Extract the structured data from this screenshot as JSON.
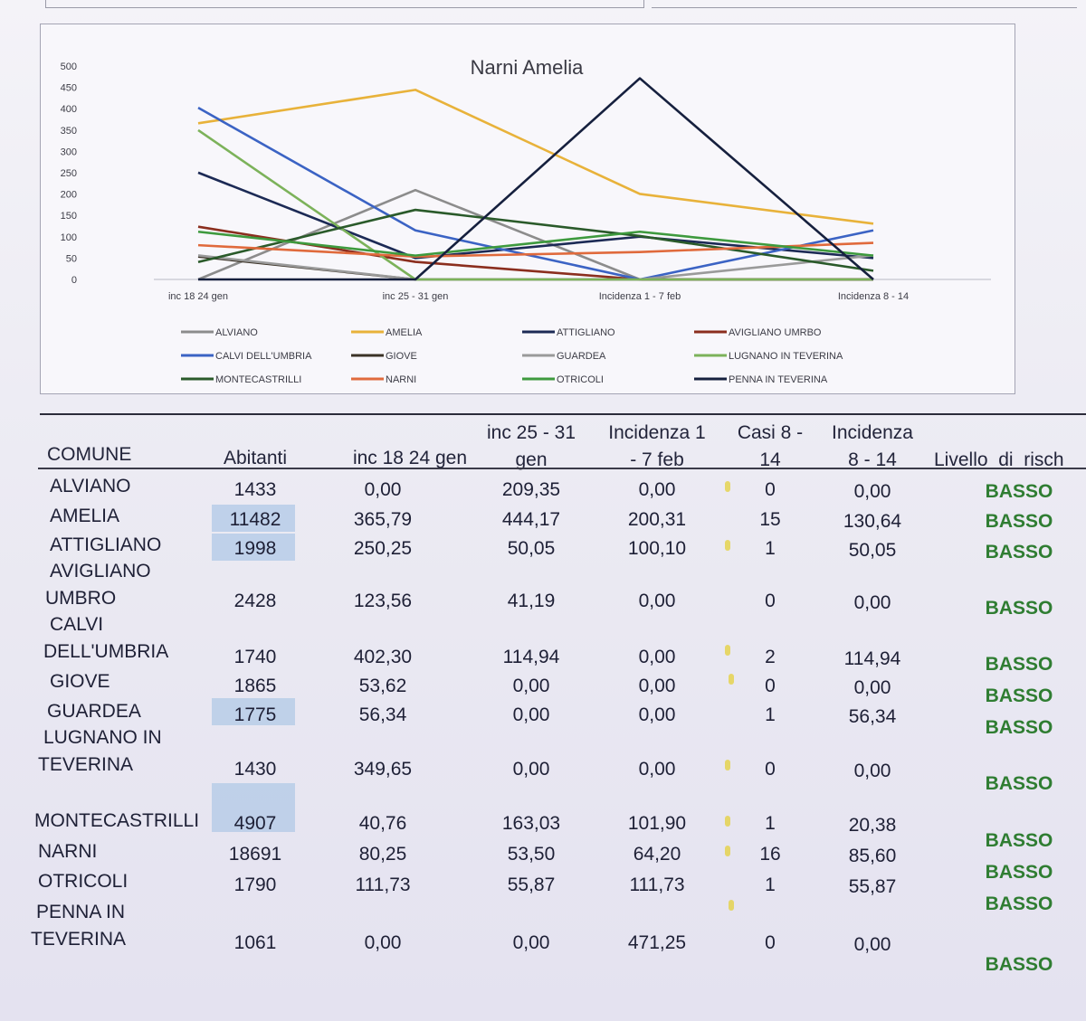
{
  "chart_data": {
    "type": "line",
    "title": "Narni Amelia",
    "categories": [
      "inc 18 24 gen",
      "inc 25 - 31 gen",
      "Incidenza 1 - 7 feb",
      "Incidenza 8 - 14"
    ],
    "ylim": [
      0,
      500
    ],
    "yticks": [
      "0",
      "50",
      "100",
      "150",
      "200",
      "250",
      "300",
      "350",
      "400",
      "450",
      "500"
    ],
    "grid": false,
    "legend_position": "bottom",
    "series": [
      {
        "name": "ALVIANO",
        "color": "#8c8c8c",
        "values": [
          0,
          209.35,
          0,
          0
        ]
      },
      {
        "name": "AMELIA",
        "color": "#e8b23a",
        "values": [
          365.79,
          444.17,
          200.31,
          130.64
        ]
      },
      {
        "name": "ATTIGLIANO",
        "color": "#1c2a55",
        "values": [
          250.25,
          50.05,
          100.1,
          50.05
        ]
      },
      {
        "name": "AVIGLIANO UMRBO",
        "color": "#8b2e1e",
        "values": [
          123.56,
          41.19,
          0,
          0
        ]
      },
      {
        "name": "CALVI DELL'UMBRIA",
        "color": "#3b63c4",
        "values": [
          402.3,
          114.94,
          0,
          114.94
        ]
      },
      {
        "name": "GIOVE",
        "color": "#3b3226",
        "values": [
          53.62,
          0,
          0,
          0
        ]
      },
      {
        "name": "GUARDEA",
        "color": "#9a9a9a",
        "values": [
          56.34,
          0,
          0,
          56.34
        ]
      },
      {
        "name": "LUGNANO IN TEVERINA",
        "color": "#7cb25a",
        "values": [
          349.65,
          0,
          0,
          0
        ]
      },
      {
        "name": "MONTECASTRILLI",
        "color": "#2a5a2a",
        "values": [
          40.76,
          163.03,
          101.9,
          20.38
        ]
      },
      {
        "name": "NARNI",
        "color": "#e06a3c",
        "values": [
          80.25,
          53.5,
          64.2,
          85.6
        ]
      },
      {
        "name": "OTRICOLI",
        "color": "#3e9a3e",
        "values": [
          111.73,
          55.87,
          111.73,
          55.87
        ]
      },
      {
        "name": "PENNA IN TEVERINA",
        "color": "#16203e",
        "values": [
          0,
          0,
          471.25,
          0
        ]
      }
    ]
  },
  "table": {
    "headers": {
      "comune": "COMUNE",
      "abitanti": "Abitanti",
      "inc1": "inc 18 24 gen",
      "inc2_a": "inc 25 - 31",
      "inc2_b": "gen",
      "inc3_a": "Incidenza 1",
      "inc3_b": "- 7 feb",
      "casi_a": "Casi 8 -",
      "casi_b": "14",
      "inc4_a": "Incidenza",
      "inc4_b": "8 - 14",
      "livello": "Livello_di_risch"
    },
    "rows": [
      {
        "name1": "ALVIANO",
        "name2": "",
        "abitanti": "1433",
        "inc1": "0,00",
        "inc2": "209,35",
        "inc3": "0,00",
        "casi": "0",
        "inc4": "0,00",
        "livello": "BASSO"
      },
      {
        "name1": "AMELIA",
        "name2": "",
        "abitanti": "11482",
        "inc1": "365,79",
        "inc2": "444,17",
        "inc3": "200,31",
        "casi": "15",
        "inc4": "130,64",
        "livello": "BASSO"
      },
      {
        "name1": "ATTIGLIANO",
        "name2": "",
        "abitanti": "1998",
        "inc1": "250,25",
        "inc2": "50,05",
        "inc3": "100,10",
        "casi": "1",
        "inc4": "50,05",
        "livello": "BASSO"
      },
      {
        "name1": "AVIGLIANO",
        "name2": "UMBRO",
        "abitanti": "2428",
        "inc1": "123,56",
        "inc2": "41,19",
        "inc3": "0,00",
        "casi": "0",
        "inc4": "0,00",
        "livello": "BASSO"
      },
      {
        "name1": "CALVI",
        "name2": "DELL'UMBRIA",
        "abitanti": "1740",
        "inc1": "402,30",
        "inc2": "114,94",
        "inc3": "0,00",
        "casi": "2",
        "inc4": "114,94",
        "livello": "BASSO"
      },
      {
        "name1": "GIOVE",
        "name2": "",
        "abitanti": "1865",
        "inc1": "53,62",
        "inc2": "0,00",
        "inc3": "0,00",
        "casi": "0",
        "inc4": "0,00",
        "livello": "BASSO"
      },
      {
        "name1": "GUARDEA",
        "name2": "",
        "abitanti": "1775",
        "inc1": "56,34",
        "inc2": "0,00",
        "inc3": "0,00",
        "casi": "1",
        "inc4": "56,34",
        "livello": "BASSO"
      },
      {
        "name1": "LUGNANO IN",
        "name2": "TEVERINA",
        "abitanti": "1430",
        "inc1": "349,65",
        "inc2": "0,00",
        "inc3": "0,00",
        "casi": "0",
        "inc4": "0,00",
        "livello": "BASSO"
      },
      {
        "name1": "MONTECASTRILLI",
        "name2": "",
        "abitanti": "4907",
        "inc1": "40,76",
        "inc2": "163,03",
        "inc3": "101,90",
        "casi": "1",
        "inc4": "20,38",
        "livello": "BASSO"
      },
      {
        "name1": "NARNI",
        "name2": "",
        "abitanti": "18691",
        "inc1": "80,25",
        "inc2": "53,50",
        "inc3": "64,20",
        "casi": "16",
        "inc4": "85,60",
        "livello": "BASSO"
      },
      {
        "name1": "OTRICOLI",
        "name2": "",
        "abitanti": "1790",
        "inc1": "111,73",
        "inc2": "55,87",
        "inc3": "111,73",
        "casi": "1",
        "inc4": "55,87",
        "livello": "BASSO"
      },
      {
        "name1": "PENNA IN",
        "name2": "TEVERINA",
        "abitanti": "1061",
        "inc1": "0,00",
        "inc2": "0,00",
        "inc3": "471,25",
        "casi": "0",
        "inc4": "0,00",
        "livello": "BASSO"
      }
    ]
  }
}
